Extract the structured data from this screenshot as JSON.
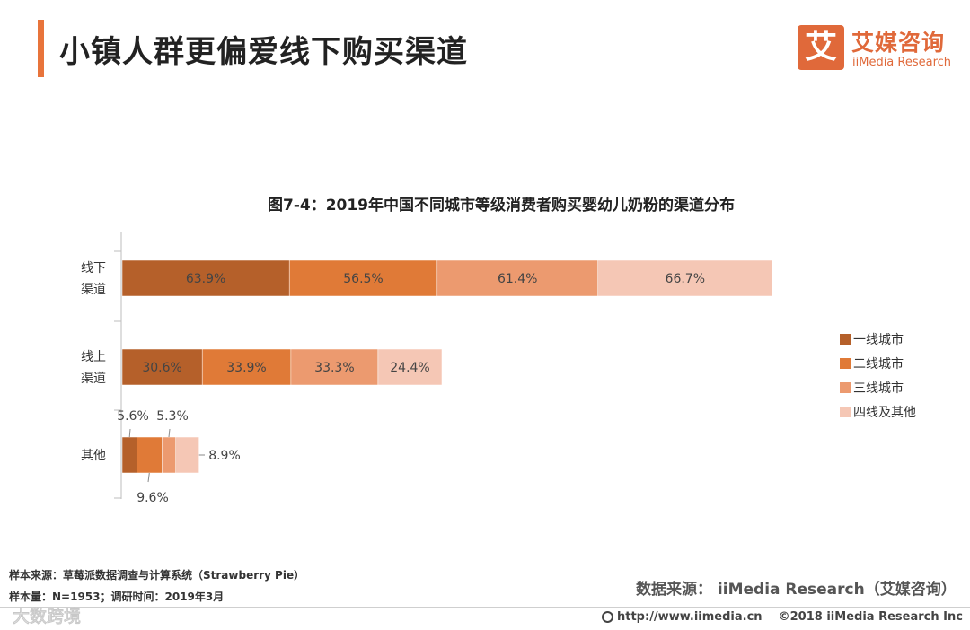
{
  "header": {
    "title": "小镇人群更偏爱线下购买渠道",
    "logo_mark": "艾",
    "logo_cn": "艾媒咨询",
    "logo_en": "iiMedia Research"
  },
  "colors": {
    "accent": "#e8743b",
    "series": [
      "#b5602a",
      "#e07a37",
      "#ec9a6f",
      "#f5c7b5"
    ]
  },
  "chart_data": {
    "type": "bar",
    "orientation": "horizontal",
    "stacked": true,
    "title": "图7-4：2019年中国不同城市等级消费者购买婴幼儿奶粉的渠道分布",
    "categories": [
      [
        "线下",
        "渠道"
      ],
      [
        "线上",
        "渠道"
      ],
      [
        "其他"
      ]
    ],
    "series": [
      {
        "name": "一线城市",
        "values": [
          63.9,
          30.6,
          5.6
        ],
        "labels": [
          "63.9%",
          "30.6%",
          "5.6%"
        ]
      },
      {
        "name": "二线城市",
        "values": [
          56.5,
          33.9,
          9.6
        ],
        "labels": [
          "56.5%",
          "33.9%",
          "9.6%"
        ]
      },
      {
        "name": "三线城市",
        "values": [
          61.4,
          33.3,
          5.3
        ],
        "labels": [
          "61.4%",
          "33.3%",
          "5.3%"
        ]
      },
      {
        "name": "四线及其他",
        "values": [
          66.7,
          24.4,
          8.9
        ],
        "labels": [
          "66.7%",
          "24.4%",
          "8.9%"
        ]
      }
    ],
    "xlim": [
      0,
      248.5
    ],
    "grid": false,
    "legend_position": "right"
  },
  "footer": {
    "sample_source": "样本来源：草莓派数据调查与计算系统（Strawberry   Pie）",
    "sample_size": "样本量：N=1953；调研时间：2019年3月",
    "data_source": "数据来源：  iiMedia Research（艾媒咨询）",
    "website": "http://www.iimedia.cn",
    "copyright": "©2018  iiMedia Research  Inc",
    "watermark": "大数跨境"
  }
}
